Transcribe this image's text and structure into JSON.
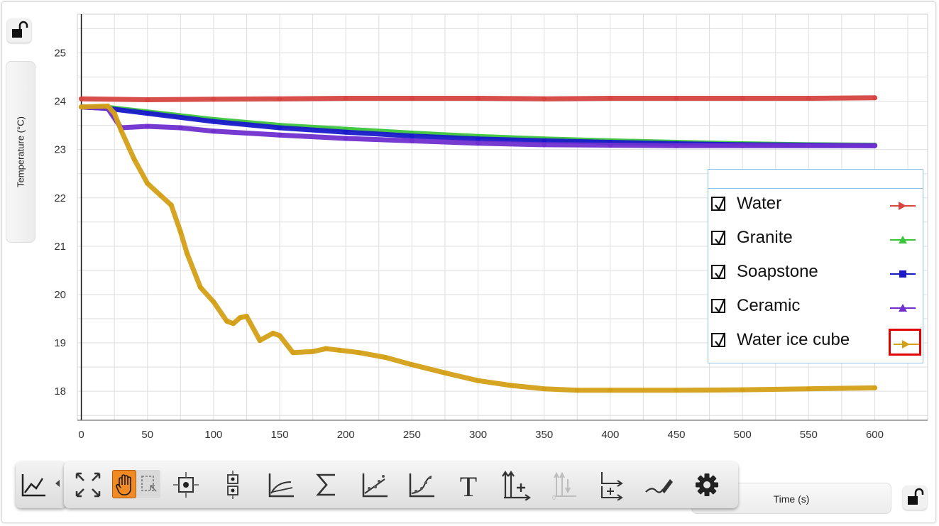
{
  "chart_data": {
    "type": "line",
    "ylabel": "Temperature (°C)",
    "xlabel": "Time (s)",
    "xlim": [
      -3,
      640
    ],
    "ylim": [
      17.4,
      25.8
    ],
    "xticks": [
      0,
      50,
      100,
      150,
      200,
      250,
      300,
      350,
      400,
      450,
      500,
      550,
      600
    ],
    "yticks": [
      18,
      19,
      20,
      21,
      22,
      23,
      24,
      25
    ],
    "grid": true,
    "legend_position": "right",
    "series": [
      {
        "name": "Water",
        "color": "#d64541",
        "marker": "right-arrow",
        "x": [
          0,
          50,
          100,
          150,
          200,
          250,
          300,
          350,
          400,
          450,
          500,
          550,
          600
        ],
        "y": [
          24.05,
          24.03,
          24.04,
          24.05,
          24.06,
          24.06,
          24.06,
          24.05,
          24.06,
          24.06,
          24.06,
          24.06,
          24.07
        ]
      },
      {
        "name": "Granite",
        "color": "#3cc43c",
        "marker": "triangle",
        "x": [
          0,
          20,
          50,
          100,
          150,
          200,
          250,
          300,
          350,
          400,
          450,
          500,
          550,
          600
        ],
        "y": [
          23.88,
          23.87,
          23.78,
          23.62,
          23.5,
          23.42,
          23.34,
          23.27,
          23.22,
          23.18,
          23.15,
          23.12,
          23.1,
          23.09
        ]
      },
      {
        "name": "Soapstone",
        "color": "#1a1acc",
        "marker": "square",
        "x": [
          0,
          20,
          50,
          100,
          150,
          200,
          250,
          300,
          350,
          400,
          450,
          500,
          550,
          600
        ],
        "y": [
          23.88,
          23.85,
          23.75,
          23.58,
          23.45,
          23.36,
          23.28,
          23.22,
          23.18,
          23.15,
          23.12,
          23.1,
          23.09,
          23.08
        ]
      },
      {
        "name": "Ceramic",
        "color": "#7030d0",
        "marker": "triangle",
        "x": [
          0,
          20,
          30,
          50,
          75,
          100,
          150,
          200,
          250,
          300,
          350,
          400,
          450,
          500,
          550,
          600
        ],
        "y": [
          23.88,
          23.85,
          23.45,
          23.48,
          23.45,
          23.38,
          23.3,
          23.23,
          23.18,
          23.13,
          23.1,
          23.09,
          23.08,
          23.08,
          23.08,
          23.08
        ]
      },
      {
        "name": "Water ice cube",
        "color": "#d4a017",
        "marker": "right-arrow",
        "x": [
          0,
          20,
          25,
          30,
          40,
          50,
          60,
          68,
          75,
          80,
          90,
          100,
          110,
          115,
          120,
          125,
          135,
          145,
          150,
          160,
          175,
          185,
          195,
          210,
          230,
          250,
          275,
          300,
          325,
          350,
          375,
          400,
          450,
          500,
          550,
          600
        ],
        "y": [
          23.88,
          23.9,
          23.75,
          23.4,
          22.8,
          22.3,
          22.05,
          21.85,
          21.3,
          20.85,
          20.15,
          19.85,
          19.45,
          19.4,
          19.52,
          19.55,
          19.05,
          19.2,
          19.15,
          18.8,
          18.82,
          18.88,
          18.85,
          18.8,
          18.7,
          18.55,
          18.38,
          18.22,
          18.12,
          18.05,
          18.02,
          18.02,
          18.02,
          18.03,
          18.05,
          18.07
        ]
      }
    ]
  },
  "legend": {
    "items": [
      "Water",
      "Granite",
      "Soapstone",
      "Ceramic",
      "Water ice cube"
    ]
  },
  "toolbar": {
    "tools": [
      "graph-icon",
      "autoscale-icon",
      "pan-icon",
      "select-icon",
      "examine-icon",
      "point-values-icon",
      "tangent-icon",
      "statistics-icon",
      "linear-fit-icon",
      "curve-fit-icon",
      "text-annotation-icon",
      "add-calculated-column-icon",
      "zero-sensor-icon",
      "coordinate-axes-icon",
      "draw-prediction-icon",
      "settings-icon"
    ]
  }
}
